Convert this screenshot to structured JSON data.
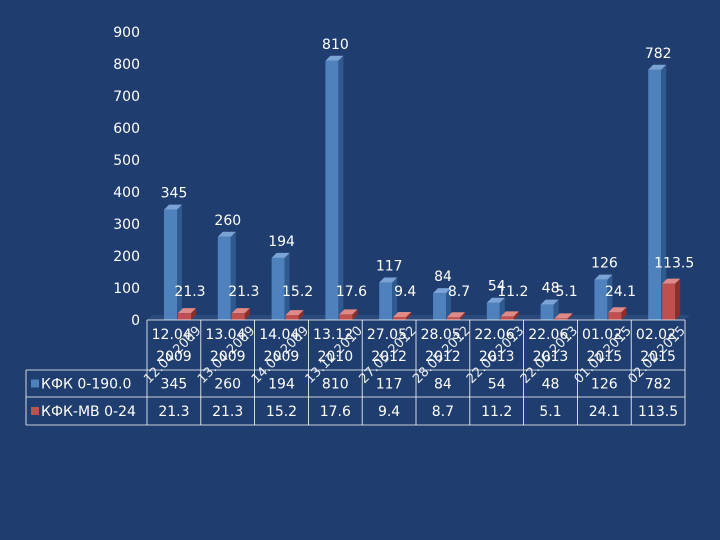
{
  "chart_data": {
    "type": "bar",
    "categories": [
      "12.04.2009",
      "13.04.2009",
      "14.04.2009",
      "13.12.2010",
      "27.05.2012",
      "28.05.2012",
      "22.06.2013",
      "22.06.2013",
      "01.02.2015",
      "02.02.2015"
    ],
    "categories_wrapped": [
      [
        "12.04.",
        "2009"
      ],
      [
        "13.04.",
        "2009"
      ],
      [
        "14.04.",
        "2009"
      ],
      [
        "13.12.",
        "2010"
      ],
      [
        "27.05.",
        "2012"
      ],
      [
        "28.05.",
        "2012"
      ],
      [
        "22.06.",
        "2013"
      ],
      [
        "22.06.",
        "2013"
      ],
      [
        "01.02.",
        "2015"
      ],
      [
        "02.02.",
        "2015"
      ]
    ],
    "rotated_labels": [
      "12.04.2009",
      "13.04.2009",
      "14.04.2009",
      "13.12.2010",
      "27.05.2012",
      "28.05.2012",
      "22.06.2013",
      "22.06.2013",
      "01.02.2015",
      "02.02.2015"
    ],
    "series": [
      {
        "name": "КФК 0-190.0",
        "values": [
          345,
          260,
          194,
          810,
          117,
          84,
          54,
          48,
          126,
          782
        ],
        "labels": [
          "345",
          "260",
          "194",
          "810",
          "117",
          "84",
          "54",
          "48",
          "126",
          "782"
        ],
        "color": "#4f81bd"
      },
      {
        "name": "КФК-МВ 0-24",
        "values": [
          21.3,
          21.3,
          15.2,
          17.6,
          9.4,
          8.7,
          11.2,
          5.1,
          24.1,
          113.5
        ],
        "labels": [
          "21.3",
          "21.3",
          "15.2",
          "17.6",
          "9.4",
          "8.7",
          "11.2",
          "5.1",
          "24.1",
          "113.5"
        ],
        "color": "#c0504d"
      }
    ],
    "yticks": [
      "0",
      "100",
      "200",
      "300",
      "400",
      "500",
      "600",
      "700",
      "800",
      "900"
    ],
    "ylim": [
      0,
      900
    ],
    "grid": false,
    "legend": "data-table"
  }
}
